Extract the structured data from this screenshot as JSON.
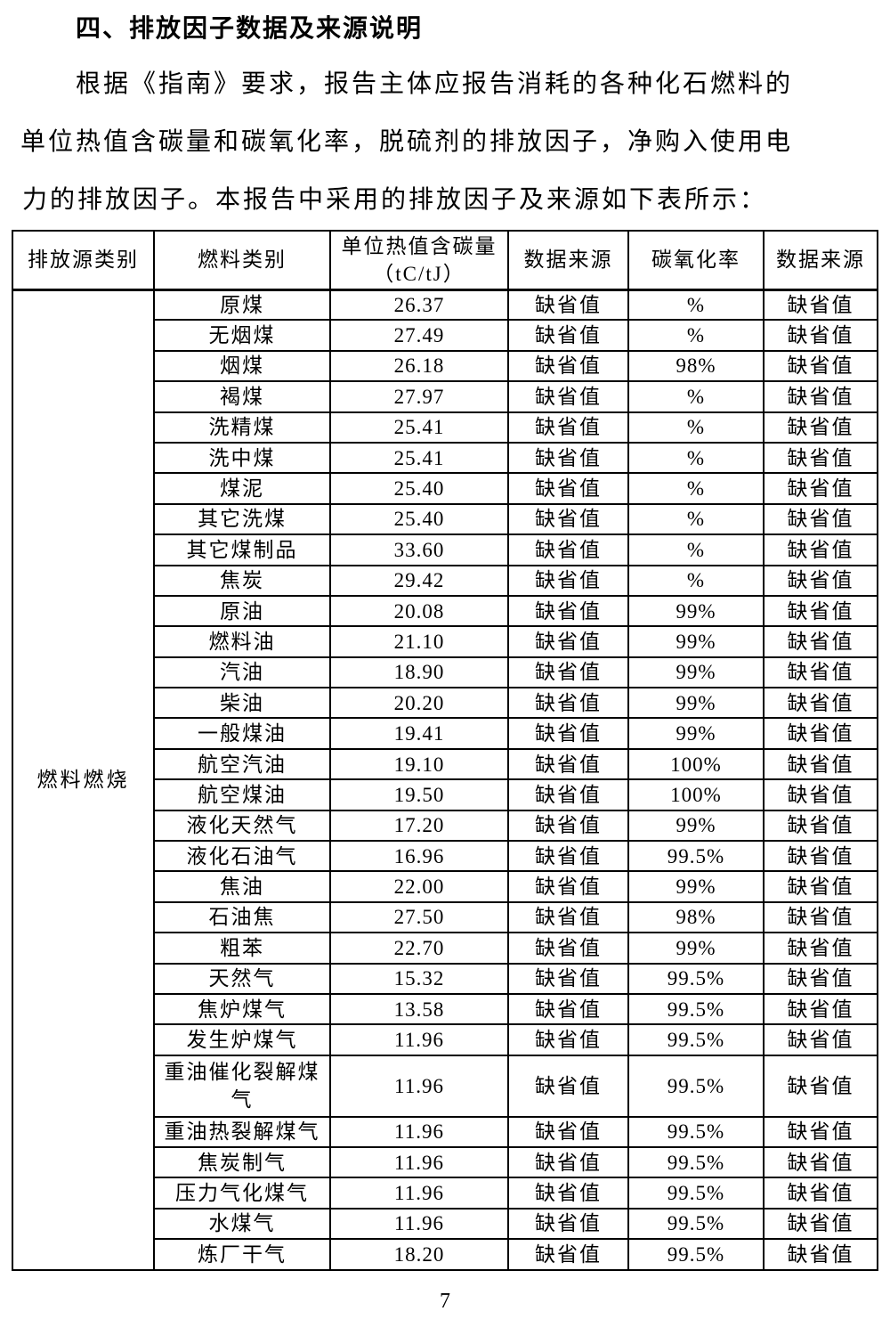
{
  "heading": "四、排放因子数据及来源说明",
  "paragraph_lines": [
    "根据《指南》要求，报告主体应报告消耗的各种化石燃料的",
    "单位热值含碳量和碳氧化率，脱硫剂的排放因子，净购入使用电",
    "力的排放因子。本报告中采用的排放因子及来源如下表所示："
  ],
  "table": {
    "headers": [
      "排放源类别",
      "燃料类别",
      "单位热值含碳量\n（tC/tJ）",
      "数据来源",
      "碳氧化率",
      "数据来源"
    ],
    "source_category": "燃料燃烧",
    "rows": [
      {
        "fuel": "原煤",
        "carbon_content": "26.37",
        "data_source_1": "缺省值",
        "oxidation_rate": "%",
        "data_source_2": "缺省值",
        "tall": false
      },
      {
        "fuel": "无烟煤",
        "carbon_content": "27.49",
        "data_source_1": "缺省值",
        "oxidation_rate": "%",
        "data_source_2": "缺省值",
        "tall": false
      },
      {
        "fuel": "烟煤",
        "carbon_content": "26.18",
        "data_source_1": "缺省值",
        "oxidation_rate": "98%",
        "data_source_2": "缺省值",
        "tall": false
      },
      {
        "fuel": "褐煤",
        "carbon_content": "27.97",
        "data_source_1": "缺省值",
        "oxidation_rate": "%",
        "data_source_2": "缺省值",
        "tall": false
      },
      {
        "fuel": "洗精煤",
        "carbon_content": "25.41",
        "data_source_1": "缺省值",
        "oxidation_rate": "%",
        "data_source_2": "缺省值",
        "tall": false
      },
      {
        "fuel": "洗中煤",
        "carbon_content": "25.41",
        "data_source_1": "缺省值",
        "oxidation_rate": "%",
        "data_source_2": "缺省值",
        "tall": false
      },
      {
        "fuel": "煤泥",
        "carbon_content": "25.40",
        "data_source_1": "缺省值",
        "oxidation_rate": "%",
        "data_source_2": "缺省值",
        "tall": false
      },
      {
        "fuel": "其它洗煤",
        "carbon_content": "25.40",
        "data_source_1": "缺省值",
        "oxidation_rate": "%",
        "data_source_2": "缺省值",
        "tall": false
      },
      {
        "fuel": "其它煤制品",
        "carbon_content": "33.60",
        "data_source_1": "缺省值",
        "oxidation_rate": "%",
        "data_source_2": "缺省值",
        "tall": false
      },
      {
        "fuel": "焦炭",
        "carbon_content": "29.42",
        "data_source_1": "缺省值",
        "oxidation_rate": "%",
        "data_source_2": "缺省值",
        "tall": false
      },
      {
        "fuel": "原油",
        "carbon_content": "20.08",
        "data_source_1": "缺省值",
        "oxidation_rate": "99%",
        "data_source_2": "缺省值",
        "tall": false
      },
      {
        "fuel": "燃料油",
        "carbon_content": "21.10",
        "data_source_1": "缺省值",
        "oxidation_rate": "99%",
        "data_source_2": "缺省值",
        "tall": false
      },
      {
        "fuel": "汽油",
        "carbon_content": "18.90",
        "data_source_1": "缺省值",
        "oxidation_rate": "99%",
        "data_source_2": "缺省值",
        "tall": false
      },
      {
        "fuel": "柴油",
        "carbon_content": "20.20",
        "data_source_1": "缺省值",
        "oxidation_rate": "99%",
        "data_source_2": "缺省值",
        "tall": false
      },
      {
        "fuel": "一般煤油",
        "carbon_content": "19.41",
        "data_source_1": "缺省值",
        "oxidation_rate": "99%",
        "data_source_2": "缺省值",
        "tall": false
      },
      {
        "fuel": "航空汽油",
        "carbon_content": "19.10",
        "data_source_1": "缺省值",
        "oxidation_rate": "100%",
        "data_source_2": "缺省值",
        "tall": false
      },
      {
        "fuel": "航空煤油",
        "carbon_content": "19.50",
        "data_source_1": "缺省值",
        "oxidation_rate": "100%",
        "data_source_2": "缺省值",
        "tall": false
      },
      {
        "fuel": "液化天然气",
        "carbon_content": "17.20",
        "data_source_1": "缺省值",
        "oxidation_rate": "99%",
        "data_source_2": "缺省值",
        "tall": false
      },
      {
        "fuel": "液化石油气",
        "carbon_content": "16.96",
        "data_source_1": "缺省值",
        "oxidation_rate": "99.5%",
        "data_source_2": "缺省值",
        "tall": false
      },
      {
        "fuel": "焦油",
        "carbon_content": "22.00",
        "data_source_1": "缺省值",
        "oxidation_rate": "99%",
        "data_source_2": "缺省值",
        "tall": false
      },
      {
        "fuel": "石油焦",
        "carbon_content": "27.50",
        "data_source_1": "缺省值",
        "oxidation_rate": "98%",
        "data_source_2": "缺省值",
        "tall": false
      },
      {
        "fuel": "粗苯",
        "carbon_content": "22.70",
        "data_source_1": "缺省值",
        "oxidation_rate": "99%",
        "data_source_2": "缺省值",
        "tall": false
      },
      {
        "fuel": "天然气",
        "carbon_content": "15.32",
        "data_source_1": "缺省值",
        "oxidation_rate": "99.5%",
        "data_source_2": "缺省值",
        "tall": false
      },
      {
        "fuel": "焦炉煤气",
        "carbon_content": "13.58",
        "data_source_1": "缺省值",
        "oxidation_rate": "99.5%",
        "data_source_2": "缺省值",
        "tall": false
      },
      {
        "fuel": "发生炉煤气",
        "carbon_content": "11.96",
        "data_source_1": "缺省值",
        "oxidation_rate": "99.5%",
        "data_source_2": "缺省值",
        "tall": false
      },
      {
        "fuel": "重油催化裂解煤气",
        "carbon_content": "11.96",
        "data_source_1": "缺省值",
        "oxidation_rate": "99.5%",
        "data_source_2": "缺省值",
        "tall": true
      },
      {
        "fuel": "重油热裂解煤气",
        "carbon_content": "11.96",
        "data_source_1": "缺省值",
        "oxidation_rate": "99.5%",
        "data_source_2": "缺省值",
        "tall": false
      },
      {
        "fuel": "焦炭制气",
        "carbon_content": "11.96",
        "data_source_1": "缺省值",
        "oxidation_rate": "99.5%",
        "data_source_2": "缺省值",
        "tall": false
      },
      {
        "fuel": "压力气化煤气",
        "carbon_content": "11.96",
        "data_source_1": "缺省值",
        "oxidation_rate": "99.5%",
        "data_source_2": "缺省值",
        "tall": false
      },
      {
        "fuel": "水煤气",
        "carbon_content": "11.96",
        "data_source_1": "缺省值",
        "oxidation_rate": "99.5%",
        "data_source_2": "缺省值",
        "tall": false
      },
      {
        "fuel": "炼厂干气",
        "carbon_content": "18.20",
        "data_source_1": "缺省值",
        "oxidation_rate": "99.5%",
        "data_source_2": "缺省值",
        "tall": false
      }
    ]
  },
  "page_number": "7"
}
